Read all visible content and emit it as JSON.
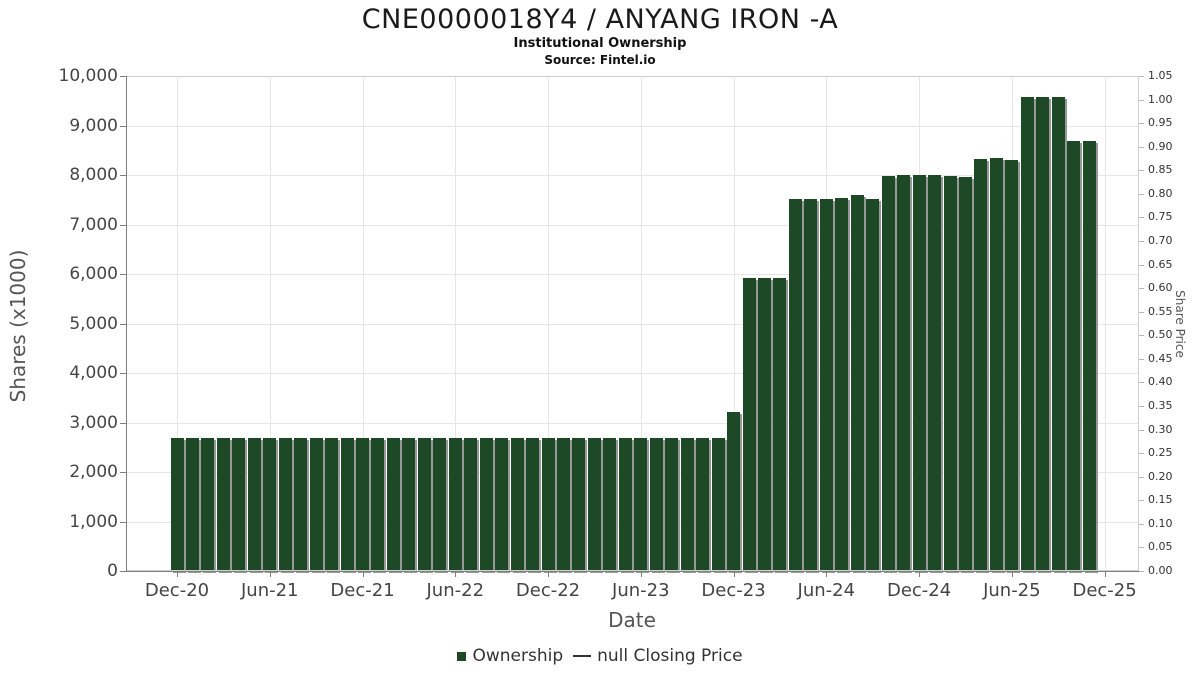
{
  "header": {
    "title": "CNE0000018Y4 / ANYANG IRON -A",
    "subtitle": "Institutional Ownership",
    "source": "Source: Fintel.io"
  },
  "colors": {
    "bar": "#1e4926",
    "bar_shadow": "#888888",
    "grid": "#e6e6e6",
    "axis": "#808080",
    "text": "#454545",
    "legend_line": "#333333"
  },
  "chart_data": {
    "type": "bar",
    "title": "CNE0000018Y4 / ANYANG IRON -A",
    "subtitle": "Institutional Ownership",
    "source": "Source: Fintel.io",
    "xlabel": "Date",
    "ylabel_left": "Shares (x1000)",
    "ylabel_right": "Share Price",
    "ylim_left": [
      0,
      10000
    ],
    "ytick_step_left": 1000,
    "ylim_right": [
      0,
      1.05
    ],
    "ytick_step_right": 0.05,
    "grid": true,
    "legend_position": "bottom",
    "legend": [
      {
        "label": "Ownership",
        "marker": "square",
        "color": "#1e4926"
      },
      {
        "label": "null Closing Price",
        "marker": "line",
        "color": "#333333"
      }
    ],
    "xtick_labels": [
      "Dec-20",
      "Jun-21",
      "Dec-21",
      "Jun-22",
      "Dec-22",
      "Jun-23",
      "Dec-23",
      "Jun-24",
      "Dec-24",
      "Jun-25",
      "Dec-25"
    ],
    "xtick_indices": [
      0,
      6,
      12,
      18,
      24,
      30,
      36,
      42,
      48,
      54,
      60
    ],
    "categories": [
      "Dec-20",
      "Jan-21",
      "Feb-21",
      "Mar-21",
      "Apr-21",
      "May-21",
      "Jun-21",
      "Jul-21",
      "Aug-21",
      "Sep-21",
      "Oct-21",
      "Nov-21",
      "Dec-21",
      "Jan-22",
      "Feb-22",
      "Mar-22",
      "Apr-22",
      "May-22",
      "Jun-22",
      "Jul-22",
      "Aug-22",
      "Sep-22",
      "Oct-22",
      "Nov-22",
      "Dec-22",
      "Jan-23",
      "Feb-23",
      "Mar-23",
      "Apr-23",
      "May-23",
      "Jun-23",
      "Jul-23",
      "Aug-23",
      "Sep-23",
      "Oct-23",
      "Nov-23",
      "Dec-23",
      "Jan-24",
      "Feb-24",
      "Mar-24",
      "Apr-24",
      "May-24",
      "Jun-24",
      "Jul-24",
      "Aug-24",
      "Sep-24",
      "Oct-24",
      "Nov-24",
      "Dec-24",
      "Jan-25",
      "Feb-25",
      "Mar-25",
      "Apr-25",
      "May-25",
      "Jun-25",
      "Jul-25",
      "Aug-25",
      "Sep-25",
      "Oct-25",
      "Nov-25"
    ],
    "series": [
      {
        "name": "Ownership",
        "type": "bar",
        "color": "#1e4926",
        "values": [
          2685,
          2685,
          2685,
          2685,
          2685,
          2685,
          2685,
          2685,
          2685,
          2685,
          2685,
          2685,
          2685,
          2685,
          2685,
          2685,
          2685,
          2685,
          2685,
          2685,
          2685,
          2685,
          2685,
          2685,
          2685,
          2685,
          2685,
          2685,
          2685,
          2685,
          2685,
          2685,
          2685,
          2685,
          2685,
          2685,
          3210,
          5910,
          5910,
          5910,
          7510,
          7510,
          7510,
          7530,
          7600,
          7510,
          7970,
          7990,
          7990,
          8000,
          7970,
          7950,
          8330,
          8350,
          8310,
          9580,
          9580,
          9570,
          8680,
          8690
        ]
      },
      {
        "name": "null Closing Price",
        "type": "line",
        "color": "#333333",
        "values": []
      }
    ]
  }
}
